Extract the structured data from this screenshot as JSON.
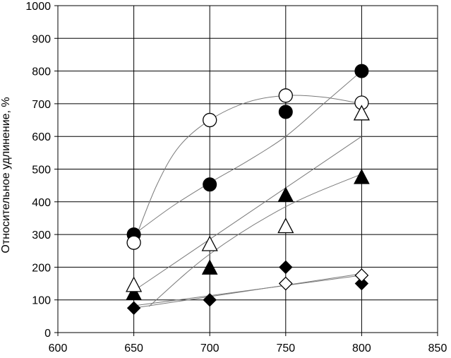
{
  "chart_data": {
    "type": "scatter",
    "title": "",
    "xlabel": "",
    "ylabel": "Относительное удлинение, %",
    "xlim": [
      600,
      850
    ],
    "ylim": [
      0,
      1000
    ],
    "x_ticks": [
      600,
      650,
      700,
      750,
      800,
      850
    ],
    "y_ticks": [
      0,
      100,
      200,
      300,
      400,
      500,
      600,
      700,
      800,
      900,
      1000
    ],
    "grid": true,
    "legend": "none",
    "series": [
      {
        "marker": "filled-circle",
        "x": [
          650,
          700,
          750,
          800
        ],
        "y": [
          300,
          453,
          675,
          800
        ]
      },
      {
        "marker": "open-circle",
        "x": [
          650,
          700,
          750,
          800
        ],
        "y": [
          275,
          650,
          725,
          703
        ]
      },
      {
        "marker": "filled-triangle",
        "x": [
          650,
          700,
          750,
          800
        ],
        "y": [
          120,
          198,
          420,
          475
        ]
      },
      {
        "marker": "open-triangle",
        "x": [
          650,
          700,
          750,
          800
        ],
        "y": [
          145,
          270,
          325,
          670
        ]
      },
      {
        "marker": "filled-diamond",
        "x": [
          650,
          700,
          750,
          800
        ],
        "y": [
          75,
          100,
          200,
          150
        ]
      },
      {
        "marker": "open-diamond",
        "x": [
          750,
          800
        ],
        "y": [
          150,
          175
        ]
      }
    ],
    "trendlines": [
      {
        "for_marker": "filled-circle",
        "x": [
          650,
          675,
          700,
          725,
          750,
          775,
          800
        ],
        "y": [
          300,
          385,
          458,
          525,
          600,
          700,
          800
        ]
      },
      {
        "for_marker": "open-circle",
        "x": [
          650,
          665,
          680,
          700,
          725,
          750,
          775,
          800
        ],
        "y": [
          275,
          450,
          570,
          650,
          705,
          725,
          720,
          700
        ]
      },
      {
        "for_marker": "open-triangle",
        "x": [
          650,
          800
        ],
        "y": [
          128,
          600
        ]
      },
      {
        "for_marker": "filled-triangle",
        "x": [
          660,
          700,
          750,
          800
        ],
        "y": [
          80,
          240,
          385,
          485
        ]
      },
      {
        "for_marker": "filled-diamond",
        "x": [
          650,
          800
        ],
        "y": [
          75,
          180
        ]
      },
      {
        "for_marker": "open-diamond",
        "x": [
          650,
          800
        ],
        "y": [
          82,
          175
        ]
      }
    ]
  }
}
